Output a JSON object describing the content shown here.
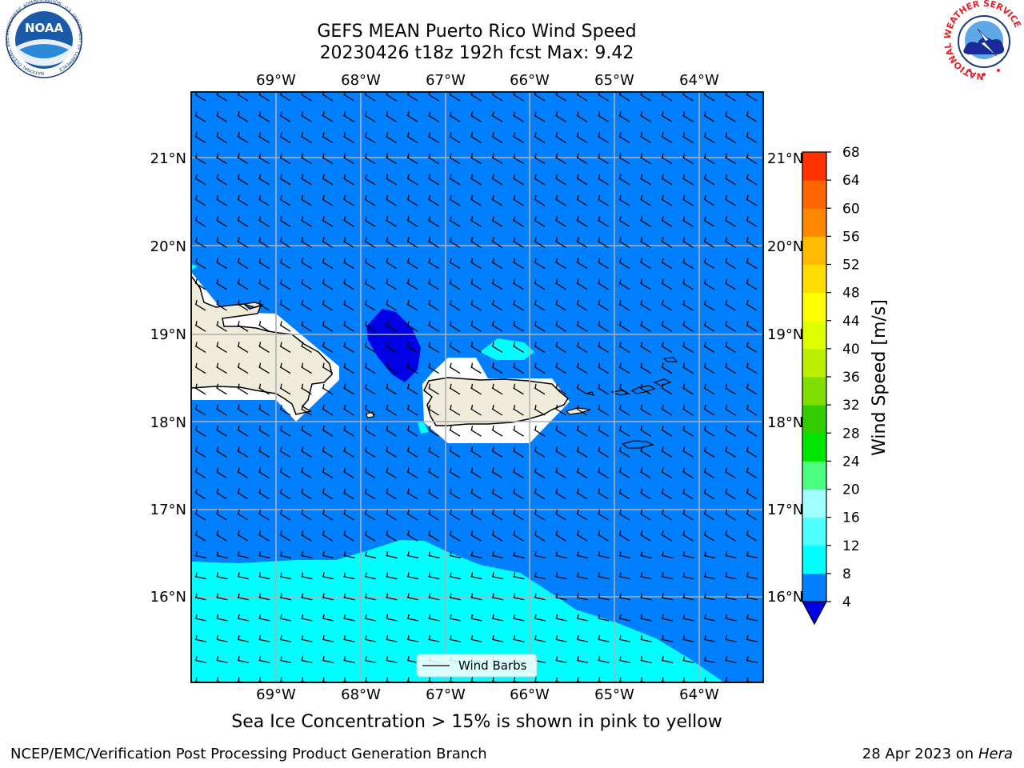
{
  "header": {
    "title_line1": "GEFS MEAN Puerto Rico Wind Speed",
    "title_line2": "20230426 t18z 192h fcst   Max: 9.42",
    "left_logo": "noara-logo",
    "left_logo_text": "NOAA",
    "left_logo_ring_text": "NATIONAL OCEANIC AND ATMOSPHERIC ADMINISTRATION · U.S. DEPARTMENT OF COMMERCE",
    "right_logo": "nws-logo",
    "right_logo_ring_text": "NATIONAL WEATHER SERVICE"
  },
  "map": {
    "lon_labels": [
      "69°W",
      "68°W",
      "67°W",
      "66°W",
      "65°W",
      "64°W"
    ],
    "lat_labels": [
      "21°N",
      "20°N",
      "19°N",
      "18°N",
      "17°N",
      "16°N"
    ],
    "legend_label": "Wind Barbs",
    "colors": {
      "ocean_4_8": "#0080ff",
      "ocean_below_4": "#0000e6",
      "ocean_8_12": "#00ffff",
      "ocean_12_16": "#4dffff",
      "land": "#efecdc",
      "gridline": "#b0b0b0"
    }
  },
  "colorbar": {
    "label": "Wind Speed [m/s]",
    "ticks": [
      "4",
      "8",
      "12",
      "16",
      "20",
      "24",
      "28",
      "32",
      "36",
      "40",
      "44",
      "48",
      "52",
      "56",
      "60",
      "64",
      "68"
    ],
    "colors": [
      "#0080ff",
      "#00ffff",
      "#4dffff",
      "#a0ffff",
      "#4dff80",
      "#00e600",
      "#33cc00",
      "#80dd00",
      "#bbee00",
      "#ddff00",
      "#ffff00",
      "#ffdd00",
      "#ffbb00",
      "#ff8800",
      "#ff6600",
      "#ff3300",
      "#ff0000"
    ],
    "under_color": "#0000e6"
  },
  "note": "Sea Ice Concentration > 15% is shown in pink to yellow",
  "footer": {
    "left": "NCEP/EMC/Verification Post Processing Product Generation Branch",
    "right_date": "28 Apr 2023 on",
    "right_host": "Hera"
  }
}
